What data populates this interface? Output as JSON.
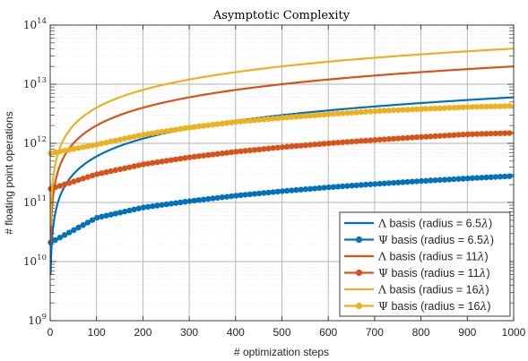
{
  "chart_data": {
    "type": "line",
    "title": "Asymptotic Complexity",
    "xlabel": "# optimization steps",
    "ylabel": "# floating point operations",
    "xlim": [
      0,
      1000
    ],
    "ylim": [
      1000000000.0,
      100000000000000.0
    ],
    "yscale": "log",
    "grid": true,
    "minor_grid": true,
    "legend_position": "bottom-right",
    "x_ticks": [
      "0",
      "100",
      "200",
      "300",
      "400",
      "500",
      "600",
      "700",
      "800",
      "900",
      "1000"
    ],
    "y_ticks": [
      {
        "base": "10",
        "exp": "9"
      },
      {
        "base": "10",
        "exp": "10"
      },
      {
        "base": "10",
        "exp": "11"
      },
      {
        "base": "10",
        "exp": "12"
      },
      {
        "base": "10",
        "exp": "13"
      },
      {
        "base": "10",
        "exp": "14"
      }
    ],
    "series": [
      {
        "name": "Λ basis (radius = 6.5λ)",
        "sym": "Λ",
        "text": " basis (radius = 6.5",
        "lam": "λ",
        "close": ")",
        "color": "#0072BD",
        "marker": false,
        "x": [
          1,
          10,
          30,
          50,
          100,
          200,
          300,
          400,
          500,
          600,
          700,
          800,
          900,
          1000
        ],
        "y": [
          5500000000.0,
          60000000000.0,
          180000000000.0,
          300000000000.0,
          600000000000.0,
          1200000000000.0,
          1800000000000.0,
          2400000000000.0,
          3000000000000.0,
          3600000000000.0,
          4200000000000.0,
          4800000000000.0,
          5400000000000.0,
          6000000000000.0
        ]
      },
      {
        "name": "Ψ basis (radius = 6.5λ)",
        "sym": "Ψ",
        "text": " basis (radius = 6.5",
        "lam": "λ",
        "close": ")",
        "color": "#0072BD",
        "marker": true,
        "x": [
          1,
          100,
          200,
          300,
          400,
          500,
          600,
          700,
          800,
          900,
          1000
        ],
        "y": [
          21000000000.0,
          55000000000.0,
          82000000000.0,
          105000000000.0,
          130000000000.0,
          155000000000.0,
          180000000000.0,
          205000000000.0,
          230000000000.0,
          255000000000.0,
          280000000000.0
        ]
      },
      {
        "name": "Λ basis (radius = 11λ)",
        "sym": "Λ",
        "text": " basis (radius = 11",
        "lam": "λ",
        "close": ")",
        "color": "#D95319",
        "marker": false,
        "x": [
          1,
          10,
          30,
          50,
          100,
          200,
          300,
          400,
          500,
          600,
          700,
          800,
          900,
          1000
        ],
        "y": [
          20000000000.0,
          200000000000.0,
          600000000000.0,
          1000000000000.0,
          2000000000000.0,
          4000000000000.0,
          6000000000000.0,
          8000000000000.0,
          10000000000000.0,
          12000000000000.0,
          14000000000000.0,
          16000000000000.0,
          18000000000000.0,
          20000000000000.0
        ]
      },
      {
        "name": "Ψ basis (radius = 11λ)",
        "sym": "Ψ",
        "text": " basis (radius = 11",
        "lam": "λ",
        "close": ")",
        "color": "#D95319",
        "marker": true,
        "x": [
          1,
          100,
          200,
          300,
          400,
          500,
          600,
          700,
          800,
          900,
          1000
        ],
        "y": [
          170000000000.0,
          300000000000.0,
          440000000000.0,
          580000000000.0,
          720000000000.0,
          860000000000.0,
          1000000000000.0,
          1140000000000.0,
          1280000000000.0,
          1420000000000.0,
          1500000000000.0
        ]
      },
      {
        "name": "Λ basis (radius = 16λ)",
        "sym": "Λ",
        "text": " basis (radius = 16",
        "lam": "λ",
        "close": ")",
        "color": "#EDB120",
        "marker": false,
        "x": [
          1,
          10,
          30,
          50,
          100,
          200,
          300,
          400,
          500,
          600,
          700,
          800,
          900,
          1000
        ],
        "y": [
          40000000000.0,
          400000000000.0,
          1200000000000.0,
          2000000000000.0,
          4000000000000.0,
          8000000000000.0,
          12000000000000.0,
          16000000000000.0,
          20000000000000.0,
          24000000000000.0,
          28000000000000.0,
          32000000000000.0,
          36000000000000.0,
          40000000000000.0
        ]
      },
      {
        "name": "Ψ basis (radius = 16λ)",
        "sym": "Ψ",
        "text": " basis (radius = 16",
        "lam": "λ",
        "close": ")",
        "color": "#EDB120",
        "marker": true,
        "x": [
          1,
          100,
          200,
          300,
          400,
          500,
          600,
          700,
          800,
          900,
          1000
        ],
        "y": [
          680000000000.0,
          950000000000.0,
          1400000000000.0,
          1850000000000.0,
          2300000000000.0,
          2700000000000.0,
          3100000000000.0,
          3500000000000.0,
          3800000000000.0,
          4100000000000.0,
          4300000000000.0
        ]
      }
    ]
  }
}
